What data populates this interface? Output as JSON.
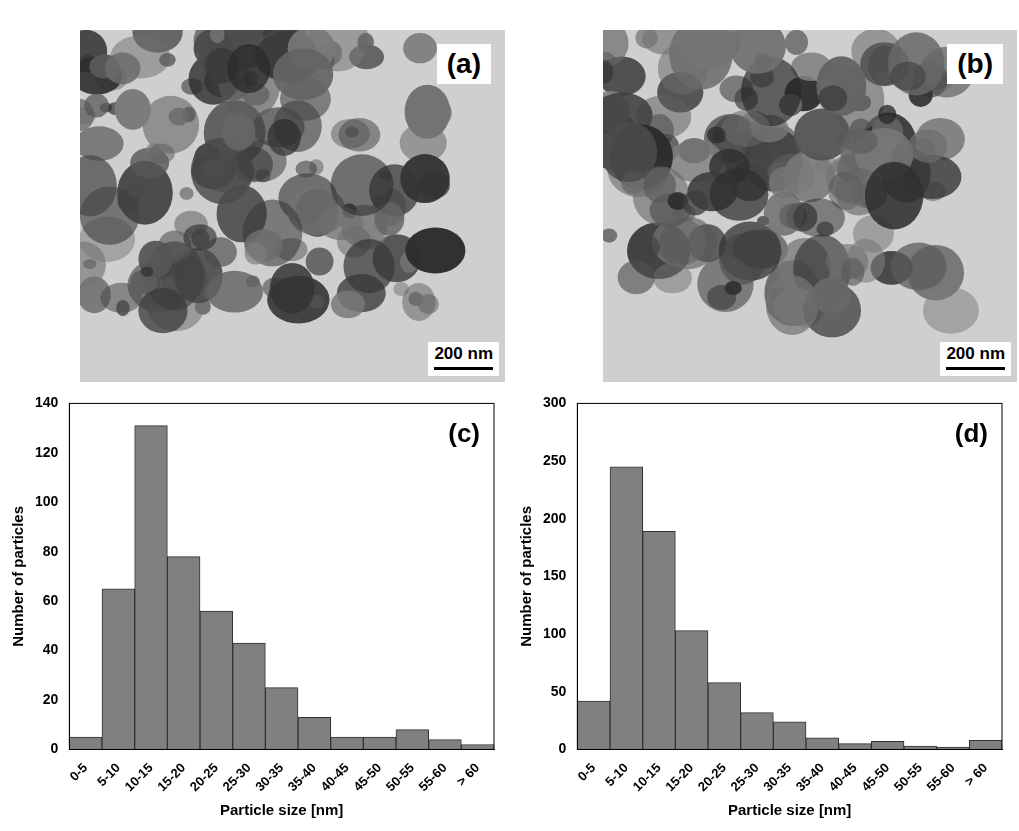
{
  "micrographs": [
    {
      "label": "(a)",
      "scale_bar": "200 nm"
    },
    {
      "label": "(b)",
      "scale_bar": "200 nm"
    }
  ],
  "chart_data": [
    {
      "type": "bar",
      "panel": "(c)",
      "x_label": "Particle size [nm]",
      "y_label": "Number of particles",
      "categories": [
        "0-5",
        "5-10",
        "10-15",
        "15-20",
        "20-25",
        "25-30",
        "30-35",
        "35-40",
        "40-45",
        "45-50",
        "50-55",
        "55-60",
        "> 60"
      ],
      "values": [
        5,
        65,
        131,
        78,
        56,
        43,
        25,
        13,
        5,
        5,
        8,
        4,
        2
      ],
      "color": "#808080",
      "ylim": [
        0,
        140
      ],
      "yticks": [
        0,
        20,
        40,
        60,
        80,
        100,
        120,
        140
      ],
      "grid": false
    },
    {
      "type": "bar",
      "panel": "(d)",
      "x_label": "Particle size [nm]",
      "y_label": "Number of particles",
      "categories": [
        "0-5",
        "5-10",
        "10-15",
        "15-20",
        "20-25",
        "25-30",
        "30-35",
        "35-40",
        "40-45",
        "45-50",
        "50-55",
        "55-60",
        "> 60"
      ],
      "values": [
        42,
        245,
        189,
        103,
        58,
        32,
        24,
        10,
        5,
        7,
        3,
        2,
        8
      ],
      "color": "#808080",
      "ylim": [
        0,
        300
      ],
      "yticks": [
        0,
        50,
        100,
        150,
        200,
        250,
        300
      ],
      "grid": false
    }
  ]
}
